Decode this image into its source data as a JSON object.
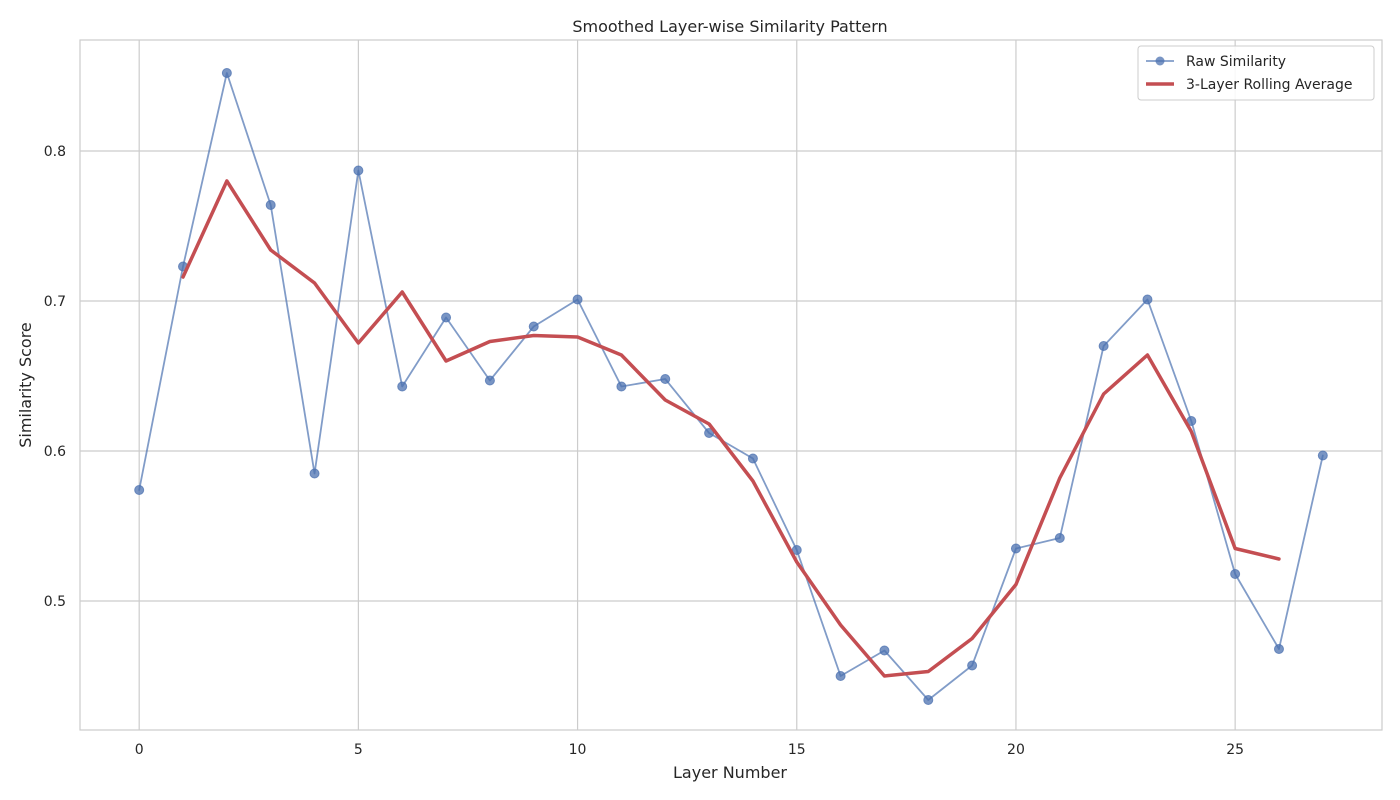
{
  "chart_data": {
    "type": "line",
    "title": "Smoothed Layer-wise Similarity Pattern",
    "xlabel": "Layer Number",
    "ylabel": "Similarity Score",
    "xlim": [
      -1.35,
      28.35
    ],
    "ylim": [
      0.414,
      0.874
    ],
    "x_ticks": [
      0,
      5,
      10,
      15,
      20,
      25
    ],
    "y_ticks": [
      0.5,
      0.6,
      0.7,
      0.8
    ],
    "x_tick_labels": [
      "0",
      "5",
      "10",
      "15",
      "20",
      "25"
    ],
    "y_tick_labels": [
      "0.5",
      "0.6",
      "0.7",
      "0.8"
    ],
    "grid": true,
    "legend_position": "top-right",
    "series": [
      {
        "name": "Raw Similarity",
        "color": "#4c72b0",
        "marker": "circle",
        "x": [
          0,
          1,
          2,
          3,
          4,
          5,
          6,
          7,
          8,
          9,
          10,
          11,
          12,
          13,
          14,
          15,
          16,
          17,
          18,
          19,
          20,
          21,
          22,
          23,
          24,
          25,
          26,
          27
        ],
        "values": [
          0.574,
          0.723,
          0.852,
          0.764,
          0.585,
          0.787,
          0.643,
          0.689,
          0.647,
          0.683,
          0.701,
          0.643,
          0.648,
          0.612,
          0.595,
          0.534,
          0.45,
          0.467,
          0.434,
          0.457,
          0.535,
          0.542,
          0.67,
          0.701,
          0.62,
          0.518,
          0.468,
          0.597
        ]
      },
      {
        "name": "3-Layer Rolling Average",
        "color": "#c44e52",
        "marker": "none",
        "x": [
          1,
          2,
          3,
          4,
          5,
          6,
          7,
          8,
          9,
          10,
          11,
          12,
          13,
          14,
          15,
          16,
          17,
          18,
          19,
          20,
          21,
          22,
          23,
          24,
          25,
          26
        ],
        "values": [
          0.716,
          0.78,
          0.734,
          0.712,
          0.672,
          0.706,
          0.66,
          0.673,
          0.677,
          0.676,
          0.664,
          0.634,
          0.618,
          0.58,
          0.526,
          0.484,
          0.45,
          0.453,
          0.475,
          0.511,
          0.582,
          0.638,
          0.664,
          0.613,
          0.535,
          0.528
        ]
      }
    ]
  }
}
